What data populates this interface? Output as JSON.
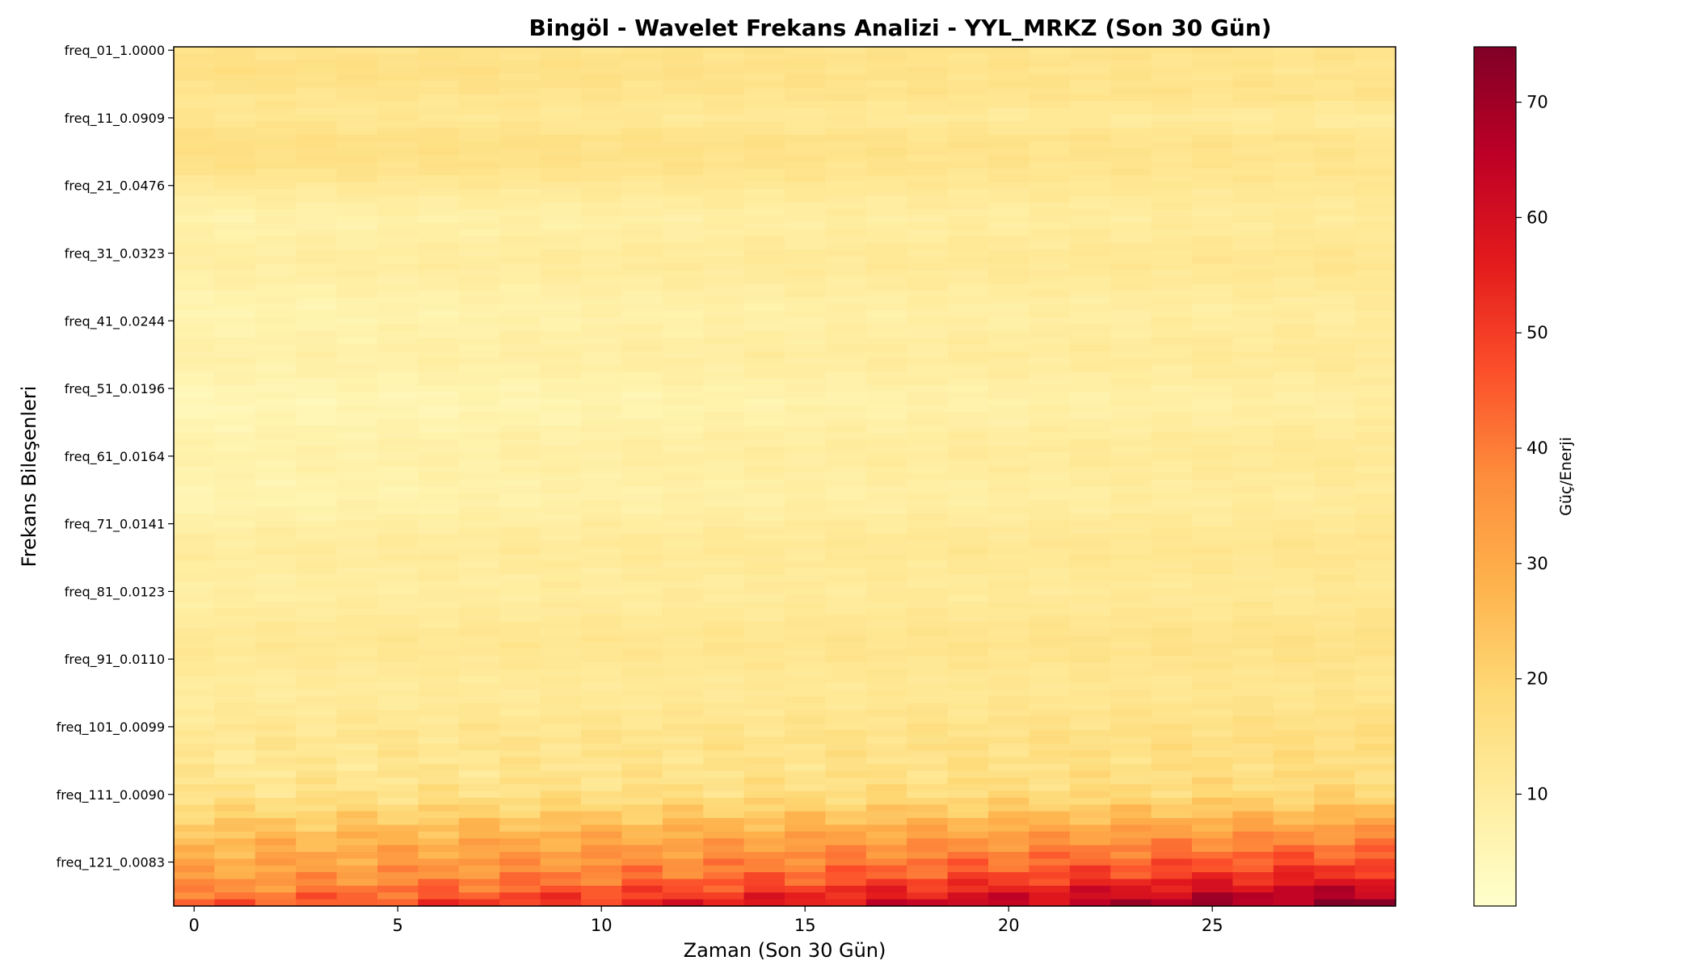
{
  "chart_data": {
    "type": "heatmap",
    "title": "Bingöl - Wavelet Frekans Analizi - YYL_MRKZ (Son 30 Gün)",
    "xlabel": "Zaman (Son 30 Gün)",
    "ylabel": "Frekans Bileşenleri",
    "x_ticks": [
      0,
      5,
      10,
      15,
      20,
      25
    ],
    "x_range": [
      -0.5,
      29.5
    ],
    "y_ticks": [
      "freq_01_1.0000",
      "freq_11_0.0909",
      "freq_21_0.0476",
      "freq_31_0.0323",
      "freq_41_0.0244",
      "freq_51_0.0196",
      "freq_61_0.0164",
      "freq_71_0.0141",
      "freq_81_0.0123",
      "freq_91_0.0110",
      "freq_101_0.0099",
      "freq_111_0.0090",
      "freq_121_0.0083"
    ],
    "y_tick_indices": [
      0,
      10,
      20,
      30,
      40,
      50,
      60,
      70,
      80,
      90,
      100,
      110,
      120
    ],
    "n_rows": 127,
    "n_cols": 30,
    "colormap": "YlOrRd",
    "colormap_stops": [
      "#ffffcc",
      "#ffeda0",
      "#fed976",
      "#feb24c",
      "#fd8d3c",
      "#fc4e2a",
      "#e31a1c",
      "#bd0026",
      "#800026"
    ],
    "colorbar": {
      "label": "Güç/Enerji",
      "vmin": 0.3,
      "vmax": 74.8,
      "ticks": [
        10,
        20,
        30,
        40,
        50,
        60,
        70
      ]
    },
    "row_profile": {
      "rows": [
        0,
        3,
        7,
        10,
        13,
        17,
        20,
        25,
        30,
        40,
        50,
        60,
        70,
        80,
        90,
        100,
        105,
        110,
        113,
        116,
        119,
        122,
        124,
        126
      ],
      "start_values": [
        14,
        15,
        13,
        14,
        16,
        14,
        11,
        8,
        8,
        7,
        6,
        6,
        8,
        10,
        11,
        11,
        12,
        15,
        19,
        24,
        29,
        33,
        37,
        42
      ],
      "end_values": [
        14,
        12,
        14,
        11,
        14,
        12,
        12,
        12,
        12,
        11,
        10,
        11,
        12,
        13,
        14,
        15,
        17,
        20,
        26,
        35,
        45,
        55,
        64,
        72
      ]
    }
  }
}
